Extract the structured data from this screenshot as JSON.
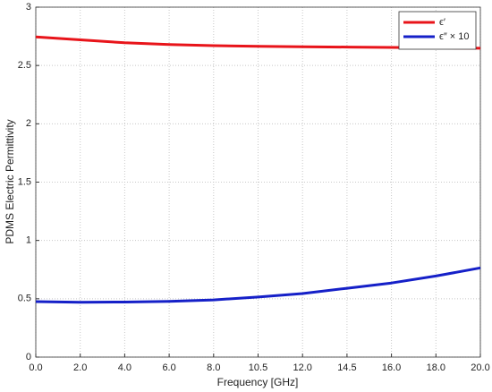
{
  "chart_data": {
    "type": "line",
    "categories": [
      "0.0",
      "2.0",
      "4.0",
      "6.0",
      "8.0",
      "10.5",
      "12.0",
      "14.5",
      "16.0",
      "18.0",
      "20.0"
    ],
    "series": [
      {
        "name": "ϵ′",
        "color": "#e8141a",
        "values": [
          2.745,
          2.72,
          2.695,
          2.68,
          2.67,
          2.665,
          2.66,
          2.658,
          2.655,
          2.652,
          2.648
        ]
      },
      {
        "name": "ϵ″ × 10",
        "color": "#1520c8",
        "values": [
          0.476,
          0.47,
          0.472,
          0.478,
          0.49,
          0.515,
          0.545,
          0.59,
          0.635,
          0.695,
          0.765
        ]
      }
    ],
    "x_label": "Frequency [GHz]",
    "y_label": "PDMS Electric Permittivity",
    "ylim": [
      0,
      3
    ],
    "yticks": [
      0,
      0.5,
      1,
      1.5,
      2,
      2.5,
      3
    ],
    "grid": true,
    "legend": "upper-right"
  }
}
